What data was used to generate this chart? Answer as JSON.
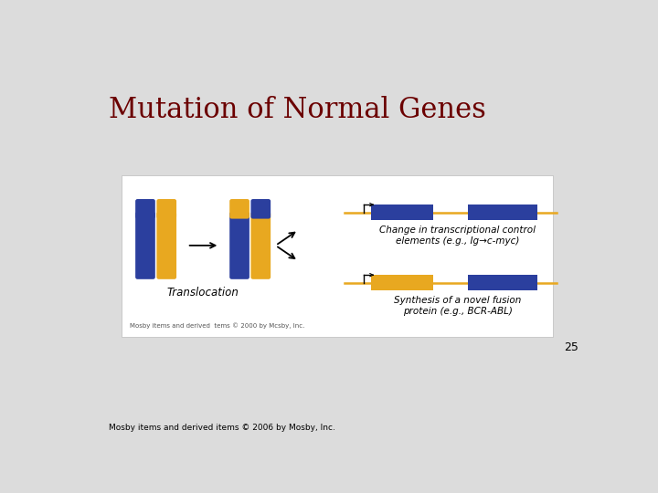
{
  "title": "Mutation of Normal Genes",
  "title_color": "#6B0000",
  "title_fontsize": 22,
  "bg_color": "#DCDCDC",
  "white_box_color": "#FFFFFF",
  "blue_color": "#2B3F9E",
  "gold_color": "#E8A820",
  "translocation_label": "Translocation",
  "caption1": "Change in transcriptional control\nelements (e.g., Ig→c-myc)",
  "caption2": "Synthesis of a novel fusion\nprotein (e.g., BCR-ABL)",
  "copyright_inner": "Mosby items and derived  tems © 2000 by Mcsby, Inc.",
  "copyright_bottom": "Mosby items and derived items © 2006 by Mosby, Inc.",
  "page_number": "25"
}
